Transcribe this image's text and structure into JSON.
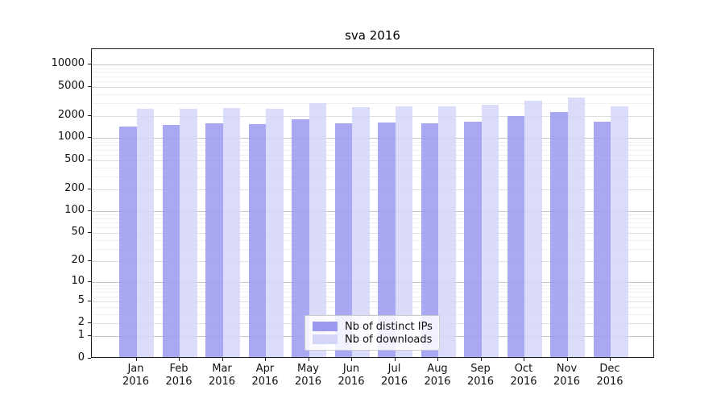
{
  "figure": {
    "title": "sva 2016"
  },
  "chart_data": {
    "type": "bar",
    "title": "sva 2016",
    "categories": [
      "Jan 2016",
      "Feb 2016",
      "Mar 2016",
      "Apr 2016",
      "May 2016",
      "Jun 2016",
      "Jul 2016",
      "Aug 2016",
      "Sep 2016",
      "Oct 2016",
      "Nov 2016",
      "Dec 2016"
    ],
    "series": [
      {
        "name": "Nb of distinct IPs",
        "color": "#9a9af1",
        "values": [
          1440,
          1510,
          1600,
          1560,
          1830,
          1610,
          1640,
          1600,
          1680,
          2020,
          2260,
          1680
        ]
      },
      {
        "name": "Nb of downloads",
        "color": "#d5d5f9",
        "values": [
          2520,
          2520,
          2580,
          2520,
          3010,
          2650,
          2720,
          2720,
          2860,
          3250,
          3610,
          2720
        ]
      }
    ],
    "xlabel": "",
    "ylabel": "",
    "yticks": [
      0,
      1,
      2,
      5,
      10,
      20,
      50,
      100,
      200,
      500,
      1000,
      2000,
      5000,
      10000
    ],
    "ylim": [
      0,
      16000
    ],
    "yscale": "log1p",
    "grid": true,
    "legend_position": "lower center"
  }
}
